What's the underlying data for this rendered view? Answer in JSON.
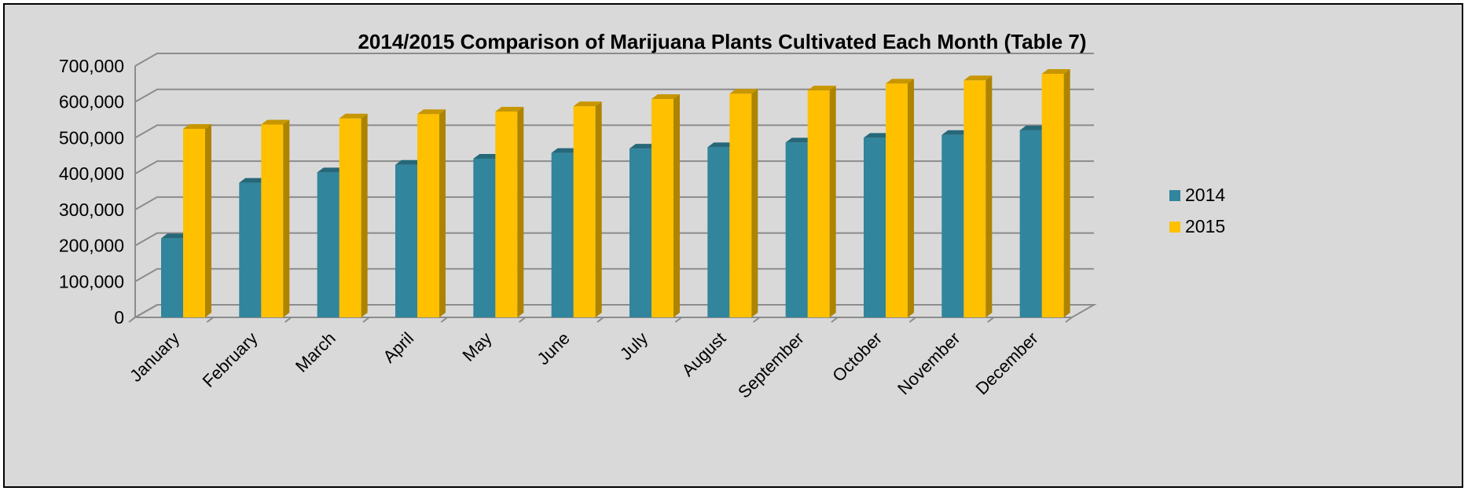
{
  "chart_data": {
    "type": "bar",
    "title": "2014/2015 Comparison of Marijuana Plants Cultivated Each Month (Table 7)",
    "xlabel": "",
    "ylabel": "",
    "categories": [
      "January",
      "February",
      "March",
      "April",
      "May",
      "June",
      "July",
      "August",
      "September",
      "October",
      "November",
      "December"
    ],
    "series": [
      {
        "name": "2014",
        "color": "#31859c",
        "values": [
          220000,
          375000,
          404000,
          425000,
          442000,
          458000,
          470000,
          474000,
          487000,
          500000,
          508000,
          521000
        ]
      },
      {
        "name": "2015",
        "color": "#ffc000",
        "values": [
          525000,
          537000,
          554000,
          566000,
          573000,
          588000,
          608000,
          623000,
          632000,
          651000,
          660000,
          678000
        ]
      }
    ],
    "ylim": [
      0,
      700000
    ],
    "yticks": [
      "0",
      "100,000",
      "200,000",
      "300,000",
      "400,000",
      "500,000",
      "600,000",
      "700,000"
    ],
    "grid": true,
    "legend_position": "right",
    "style": "3d-clustered-column"
  }
}
